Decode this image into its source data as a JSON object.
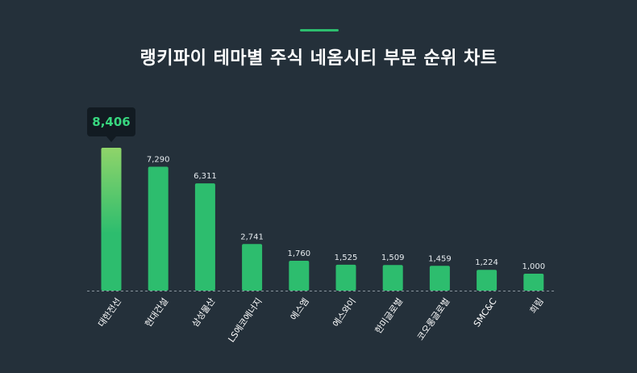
{
  "title": "랭키파이 테마별 주식 네옴시티 부문 순위 차트",
  "accent_color": "#2dbd6e",
  "chart_data": {
    "type": "bar",
    "title": "랭키파이 테마별 주식 네옴시티 부문 순위 차트",
    "categories": [
      "대한전선",
      "현대건설",
      "삼성물산",
      "LS에코에너지",
      "에스엠",
      "에스와이",
      "한미글로벌",
      "코오롱글로벌",
      "SMC&C",
      "희림"
    ],
    "values": [
      8406,
      7290,
      6311,
      2741,
      1760,
      1525,
      1509,
      1459,
      1224,
      1000
    ],
    "value_labels": [
      "8,406",
      "7,290",
      "6,311",
      "2,741",
      "1,760",
      "1,525",
      "1,509",
      "1,459",
      "1,224",
      "1,000"
    ],
    "highlight": {
      "index": 0,
      "label": "8,406"
    },
    "ylim": [
      0,
      8406
    ],
    "grid": false,
    "colors": {
      "bar": "#2dbd6e",
      "highlight_top": "#8fd46a",
      "highlight_bottom": "#2dbd6e",
      "baseline": "#8a959e"
    }
  }
}
